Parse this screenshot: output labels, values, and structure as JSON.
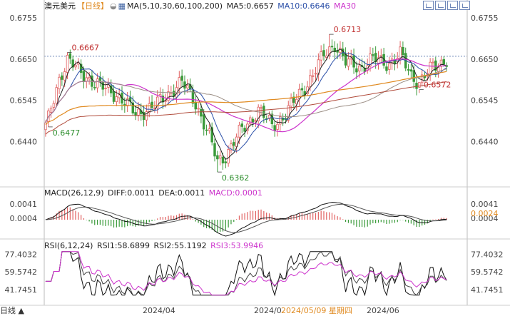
{
  "header": {
    "symbol": "澳元美元",
    "period": "【日线】",
    "period_icon": "circle-half-icon",
    "ma_label": "MA(5,10,30,60,100,200)",
    "ma5": "MA5:0.6657",
    "ma10": "MA10:0.6646",
    "ma30": "MA30"
  },
  "toolbar": {
    "icons": [
      "grid-icon",
      "grid-icon",
      "grid-icon",
      "grid-icon"
    ]
  },
  "macd_header": {
    "label": "MACD(26,12,9)",
    "diff": "DIFF:0.0011",
    "dea": "DEA:0.0011",
    "macd": "MACD:0.0001"
  },
  "rsi_header": {
    "label": "RSI(6,12,24)",
    "rsi1": "RSI1:58.6899",
    "rsi2": "RSI2:55.1192",
    "rsi3": "RSI3:53.9946"
  },
  "footer": {
    "corner_label": "日线 ▲"
  },
  "colors": {
    "up": "#e06060",
    "down": "#3a9a3a",
    "ma5": "#222222",
    "ma10": "#2a4fa8",
    "ma30": "#cc33cc",
    "ma60": "#9c8f86",
    "ma100": "#e08a20",
    "ma200": "#b04a3a",
    "highlight": "#e08a20",
    "axis": "#888888"
  },
  "chart_data": [
    {
      "type": "candlestick",
      "series": [
        "MA5",
        "MA10",
        "MA30",
        "MA60",
        "MA100",
        "MA200"
      ],
      "y_ticks": [
        "0.6755",
        "0.6650",
        "0.6545",
        "0.6440"
      ],
      "ylim": [
        0.6335,
        0.6775
      ],
      "x_ticks": [
        "2024/04",
        "2024/0",
        "2024/06"
      ],
      "hover_date": "2024/05/09 星期四",
      "reference_line": 0.6657,
      "annotations": [
        {
          "label": "0.6477",
          "value": 0.6477,
          "bar": 1
        },
        {
          "label": "0.6667",
          "value": 0.6667,
          "bar": 8
        },
        {
          "label": "0.6362",
          "value": 0.6362,
          "bar": 63
        },
        {
          "label": "0.6713",
          "value": 0.6713,
          "bar": 104
        },
        {
          "label": "0.6572",
          "value": 0.6572,
          "bar": 137
        }
      ]
    },
    {
      "type": "macd",
      "series": [
        "DIFF",
        "DEA",
        "MACD"
      ],
      "y_ticks": [
        "0.0041",
        "0.0004"
      ],
      "highlight_tick": "0.0024",
      "ylim": [
        -0.0045,
        0.006
      ]
    },
    {
      "type": "line",
      "series": [
        "RSI1",
        "RSI2",
        "RSI3"
      ],
      "y_ticks": [
        "77.4032",
        "59.5742",
        "41.7451"
      ],
      "ylim": [
        33,
        82
      ]
    }
  ]
}
